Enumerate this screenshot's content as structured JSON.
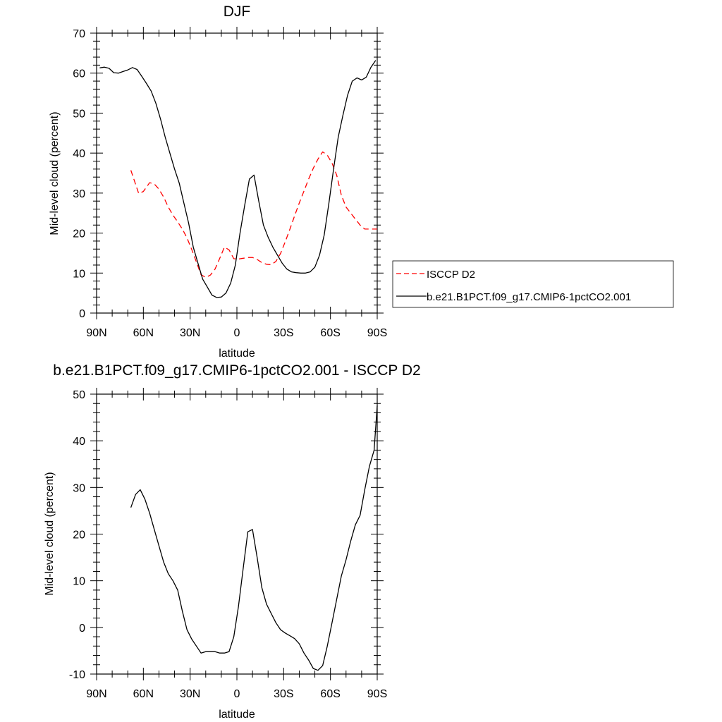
{
  "chart_data": [
    {
      "type": "line",
      "title": "DJF",
      "xlabel": "latitude",
      "ylabel": "Mid-level cloud (percent)",
      "xlim": [
        90,
        -90
      ],
      "ylim": [
        0,
        70
      ],
      "xticks": [
        90,
        60,
        30,
        0,
        -30,
        -60,
        -90
      ],
      "xtick_labels": [
        "90N",
        "60N",
        "30N",
        "0",
        "30S",
        "60S",
        "90S"
      ],
      "yticks": [
        0,
        10,
        20,
        30,
        40,
        50,
        60,
        70
      ],
      "ytick_labels": [
        "0",
        "10",
        "20",
        "30",
        "40",
        "50",
        "60",
        "70"
      ],
      "grid": false,
      "legend": "right",
      "series": [
        {
          "name": "ISCCP D2",
          "color": "#ff0000",
          "style": "dashed",
          "x": [
            68,
            63,
            60,
            56,
            53,
            50,
            47,
            44,
            41,
            38,
            35,
            32,
            29,
            26,
            23,
            20,
            17,
            14,
            11,
            8,
            5,
            2,
            -1,
            -4,
            -7,
            -10,
            -13,
            -16,
            -19,
            -22,
            -25,
            -28,
            -31,
            -34,
            -37,
            -40,
            -43,
            -46,
            -49,
            -52,
            -55,
            -58,
            -61,
            -64,
            -67,
            -70,
            -73,
            -76,
            -79,
            -82,
            -85,
            -88,
            -90
          ],
          "y": [
            35.7,
            29.9,
            30.4,
            32.6,
            32.3,
            31.0,
            29.0,
            26.5,
            24.5,
            22.8,
            21.0,
            18.8,
            15.9,
            12.8,
            9.6,
            8.9,
            9.5,
            11.0,
            13.7,
            16.5,
            15.8,
            13.6,
            13.5,
            13.7,
            13.9,
            13.9,
            13.4,
            12.6,
            12.2,
            12.1,
            12.9,
            14.9,
            17.8,
            21.0,
            24.3,
            27.5,
            30.5,
            33.5,
            36.2,
            38.5,
            40.3,
            39.5,
            37.5,
            34.5,
            29.5,
            26.5,
            25.0,
            23.5,
            22.0,
            21.0,
            21.0,
            21.0,
            21.0
          ]
        },
        {
          "name": "b.e21.B1PCT.f09_g17.CMIP6-1pctCO2.001",
          "color": "#000000",
          "style": "solid",
          "x": [
            88,
            85,
            82,
            79,
            76,
            73,
            70,
            67,
            64,
            61,
            58,
            55,
            52,
            49,
            46,
            43,
            40,
            37,
            34,
            31,
            28,
            25,
            22,
            19,
            16,
            13,
            10,
            7,
            4,
            1,
            -2,
            -5,
            -8,
            -11,
            -14,
            -17,
            -20,
            -23,
            -26,
            -29,
            -32,
            -35,
            -38,
            -41,
            -44,
            -47,
            -50,
            -53,
            -56,
            -59,
            -62,
            -65,
            -68,
            -71,
            -74,
            -77,
            -80,
            -83,
            -86,
            -89
          ],
          "y": [
            61.3,
            61.5,
            61.2,
            60.1,
            60.0,
            60.4,
            60.8,
            61.4,
            60.9,
            59.2,
            57.4,
            55.5,
            52.5,
            48.5,
            44.0,
            40.0,
            36.0,
            32.5,
            27.5,
            22.5,
            16.5,
            12.5,
            8.5,
            6.5,
            4.5,
            3.9,
            4.0,
            5.0,
            7.5,
            12.0,
            20.0,
            27.0,
            33.5,
            34.5,
            28.0,
            22.0,
            19.0,
            16.5,
            14.5,
            12.5,
            11.0,
            10.3,
            10.1,
            10.0,
            10.0,
            10.3,
            11.5,
            14.5,
            19.5,
            27.5,
            36.0,
            44.0,
            49.5,
            54.5,
            58.0,
            58.8,
            58.3,
            59.0,
            61.5,
            63.2
          ]
        }
      ]
    },
    {
      "type": "line",
      "title": "b.e21.B1PCT.f09_g17.CMIP6-1pctCO2.001 - ISCCP D2",
      "xlabel": "latitude",
      "ylabel": "Mid-level cloud (percent)",
      "xlim": [
        90,
        -90
      ],
      "ylim": [
        -10,
        50
      ],
      "xticks": [
        90,
        60,
        30,
        0,
        -30,
        -60,
        -90
      ],
      "xtick_labels": [
        "90N",
        "60N",
        "30N",
        "0",
        "30S",
        "60S",
        "90S"
      ],
      "yticks": [
        -10,
        0,
        10,
        20,
        30,
        40,
        50
      ],
      "ytick_labels": [
        "-10",
        "0",
        "10",
        "20",
        "30",
        "40",
        "50"
      ],
      "grid": false,
      "series": [
        {
          "color": "#000000",
          "style": "solid",
          "x": [
            68,
            65,
            62,
            59,
            56,
            53,
            50,
            47,
            44,
            41,
            38,
            35,
            32,
            29,
            26,
            23,
            20,
            17,
            14,
            11,
            8,
            5,
            2,
            -1,
            -4,
            -7,
            -10,
            -13,
            -16,
            -19,
            -22,
            -25,
            -28,
            -31,
            -34,
            -37,
            -40,
            -43,
            -46,
            -49,
            -52,
            -55,
            -58,
            -61,
            -64,
            -67,
            -70,
            -73,
            -76,
            -79,
            -82,
            -85,
            -88,
            -90
          ],
          "y": [
            25.7,
            28.5,
            29.5,
            27.5,
            24.5,
            21.0,
            17.5,
            14.0,
            11.5,
            10.0,
            8.0,
            3.5,
            -0.5,
            -2.5,
            -4.0,
            -5.5,
            -5.2,
            -5.2,
            -5.2,
            -5.5,
            -5.5,
            -5.2,
            -2.0,
            4.5,
            12.5,
            20.5,
            21.0,
            15.0,
            8.5,
            5.0,
            3.0,
            1.0,
            -0.5,
            -1.2,
            -1.8,
            -2.4,
            -3.5,
            -5.5,
            -7.0,
            -8.8,
            -9.2,
            -8.2,
            -4.0,
            1.0,
            6.0,
            11.0,
            14.5,
            18.5,
            22.0,
            24.0,
            29.5,
            34.5,
            38.0,
            47.5
          ]
        }
      ]
    }
  ]
}
